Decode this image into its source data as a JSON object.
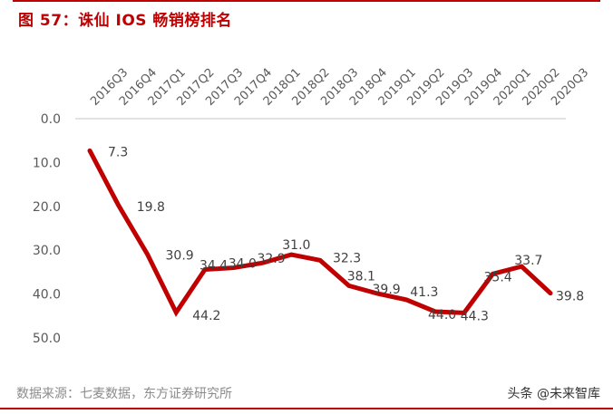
{
  "header": {
    "title": "图 57：诛仙 IOS 畅销榜排名"
  },
  "footer": {
    "source": "数据来源：七麦数据，东方证券研究所",
    "watermark": "头条 @未来智库"
  },
  "colors": {
    "accent": "#c00000",
    "line": "#c00000",
    "axis_text": "#595959",
    "gridline": "#d9d9d9"
  },
  "chart_data": {
    "type": "line",
    "title": "诛仙 IOS 畅销榜排名",
    "xlabel": "",
    "ylabel": "",
    "y_inverted": true,
    "ylim": [
      0,
      50
    ],
    "yticks": [
      "0.0",
      "10.0",
      "20.0",
      "30.0",
      "40.0",
      "50.0"
    ],
    "x_axis_position": "top",
    "categories": [
      "2016Q3",
      "2016Q4",
      "2017Q1",
      "2017Q2",
      "2017Q3",
      "2017Q4",
      "2018Q1",
      "2018Q2",
      "2018Q3",
      "2018Q4",
      "2019Q1",
      "2019Q2",
      "2019Q3",
      "2019Q4",
      "2020Q1",
      "2020Q2",
      "2020Q3"
    ],
    "series": [
      {
        "name": "诛仙 IOS 畅销榜排名",
        "values": [
          7.3,
          19.8,
          30.9,
          44.2,
          34.4,
          34.0,
          32.9,
          31.0,
          32.3,
          38.1,
          39.9,
          41.3,
          44.0,
          44.3,
          35.4,
          33.7,
          39.8
        ],
        "labels": [
          "7.3",
          "19.8",
          "30.9",
          "44.2",
          "34.4",
          "34.0",
          "32.9",
          "31.0",
          "32.3",
          "38.1",
          "39.9",
          "41.3",
          "44.0",
          "44.3",
          "35.4",
          "33.7",
          "39.8"
        ]
      }
    ],
    "grid": false,
    "legend": "none"
  }
}
